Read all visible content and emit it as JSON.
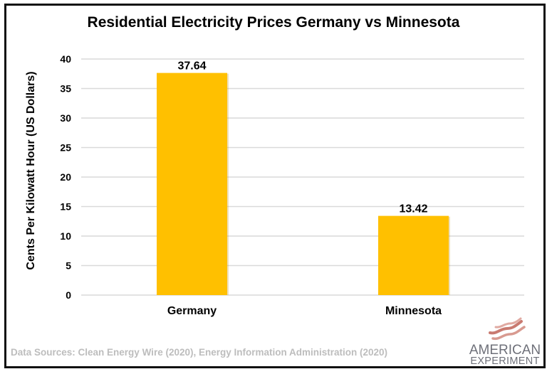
{
  "chart_data": {
    "type": "bar",
    "title": "Residential Electricity Prices Germany vs Minnesota",
    "xlabel": "",
    "ylabel": "Cents Per Kilowatt Hour (US Dollars)",
    "categories": [
      "Germany",
      "Minnesota"
    ],
    "values": [
      37.64,
      13.42
    ],
    "data_labels": [
      "37.64",
      "13.42"
    ],
    "ylim": [
      0,
      40
    ],
    "yticks": [
      0,
      5,
      10,
      15,
      20,
      25,
      30,
      35,
      40
    ],
    "ytick_labels": [
      "0",
      "5",
      "10",
      "15",
      "20",
      "25",
      "30",
      "35",
      "40"
    ],
    "grid": true,
    "legend": "none",
    "bar_color": "#FFC000"
  },
  "footer": {
    "source": "Data Sources: Clean Energy Wire (2020), Energy Information Administration (2020)"
  },
  "logo": {
    "line1": "AMERICAN",
    "line2": "EXPERIMENT",
    "icon": "flag-waves-icon",
    "color": "#c97a70"
  }
}
